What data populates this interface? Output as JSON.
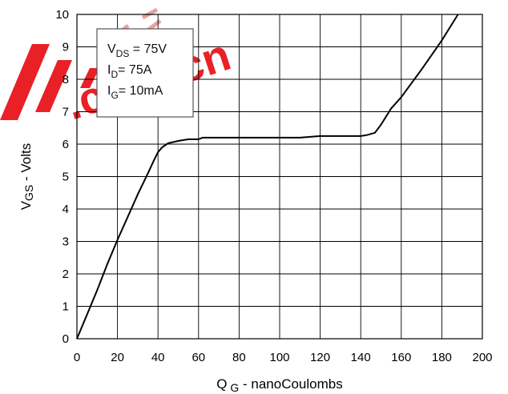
{
  "watermark": {
    "text": ".com.cn",
    "color": "#e8161c",
    "logo_color": "#e8161c"
  },
  "legend": {
    "lines": [
      {
        "main": "V",
        "sub": "DS",
        "rest": " = 75V"
      },
      {
        "main": "I",
        "sub": "D",
        "rest": "= 75A"
      },
      {
        "main": "I",
        "sub": "G",
        "rest": "= 10mA"
      }
    ]
  },
  "chart_data": {
    "type": "line",
    "xlabel": {
      "main": "Q",
      "sub": "G",
      "rest": " - nanoCoulombs"
    },
    "ylabel": {
      "main": "V",
      "sub": "GS",
      "rest": " - Volts"
    },
    "xlim": [
      0,
      200
    ],
    "ylim": [
      0,
      10
    ],
    "xticks": [
      0,
      20,
      40,
      60,
      80,
      100,
      120,
      140,
      160,
      180,
      200
    ],
    "yticks": [
      0,
      1,
      2,
      3,
      4,
      5,
      6,
      7,
      8,
      9,
      10
    ],
    "xtick_labels": [
      "0",
      "20",
      "40",
      "60",
      "80",
      "100",
      "120",
      "140",
      "160",
      "180",
      "200"
    ],
    "ytick_labels": [
      "0",
      "1",
      "2",
      "3",
      "4",
      "5",
      "6",
      "7",
      "8",
      "9",
      "10"
    ],
    "grid": true,
    "line_color": "#000000",
    "series": [
      {
        "x": [
          0,
          5,
          10,
          15,
          20,
          25,
          30,
          35,
          38,
          40,
          42,
          45,
          50,
          55,
          60,
          62,
          80,
          100,
          110,
          120,
          130,
          140,
          143,
          147,
          150,
          155,
          160,
          170,
          180,
          188
        ],
        "y": [
          0,
          0.75,
          1.5,
          2.3,
          3.05,
          3.75,
          4.45,
          5.1,
          5.5,
          5.75,
          5.9,
          6.03,
          6.1,
          6.15,
          6.15,
          6.2,
          6.2,
          6.2,
          6.2,
          6.25,
          6.25,
          6.25,
          6.28,
          6.35,
          6.6,
          7.1,
          7.45,
          8.3,
          9.2,
          10.0
        ]
      }
    ]
  }
}
